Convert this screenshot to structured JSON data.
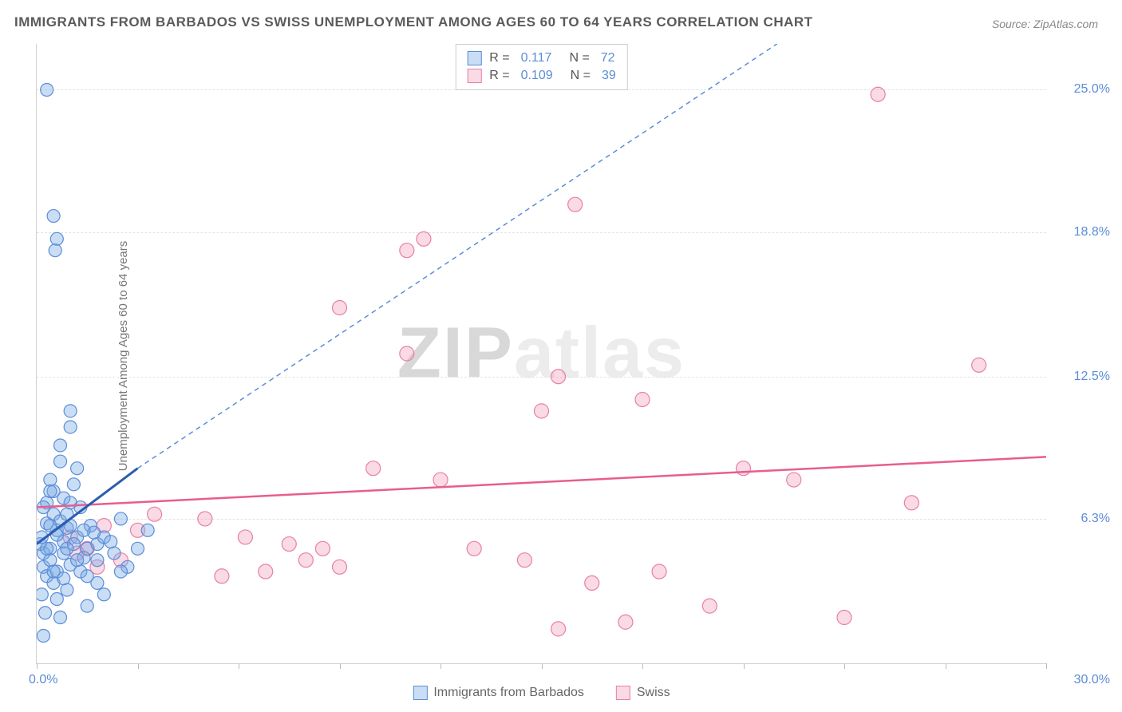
{
  "title": "IMMIGRANTS FROM BARBADOS VS SWISS UNEMPLOYMENT AMONG AGES 60 TO 64 YEARS CORRELATION CHART",
  "source": "Source: ZipAtlas.com",
  "ylabel": "Unemployment Among Ages 60 to 64 years",
  "watermark_z": "ZIP",
  "watermark_rest": "atlas",
  "chart": {
    "type": "scatter",
    "xlim": [
      0,
      30
    ],
    "ylim": [
      0,
      27
    ],
    "xlabel_min": "0.0%",
    "xlabel_max": "30.0%",
    "xtick_positions": [
      0,
      3,
      6,
      9,
      12,
      15,
      18,
      21,
      24,
      27,
      30
    ],
    "yticks": [
      {
        "value": 6.3,
        "label": "6.3%"
      },
      {
        "value": 12.5,
        "label": "12.5%"
      },
      {
        "value": 18.8,
        "label": "18.8%"
      },
      {
        "value": 25.0,
        "label": "25.0%"
      }
    ],
    "background_color": "#ffffff",
    "grid_color": "#e3e3e3",
    "series_a": {
      "name": "Immigrants from Barbados",
      "legend_label": "Immigrants from Barbados",
      "R": "0.117",
      "N": "72",
      "color_fill": "rgba(120,170,230,0.4)",
      "color_stroke": "#5b8dd6",
      "marker_radius": 8,
      "trend_solid": {
        "x1": 0,
        "y1": 5.2,
        "x2": 3,
        "y2": 8.5,
        "color": "#2b5cb0",
        "width": 3
      },
      "trend_dash": {
        "x1": 3,
        "y1": 8.5,
        "x2": 22,
        "y2": 27,
        "color": "#5b8dd6",
        "width": 1.5
      },
      "points": [
        [
          0.1,
          5.2
        ],
        [
          0.2,
          4.8
        ],
        [
          0.3,
          6.1
        ],
        [
          0.15,
          5.5
        ],
        [
          0.4,
          5.0
        ],
        [
          0.5,
          6.5
        ],
        [
          0.3,
          7.0
        ],
        [
          0.6,
          5.8
        ],
        [
          0.2,
          4.2
        ],
        [
          0.4,
          4.5
        ],
        [
          0.7,
          6.2
        ],
        [
          0.5,
          7.5
        ],
        [
          0.8,
          5.3
        ],
        [
          0.3,
          3.8
        ],
        [
          0.6,
          4.0
        ],
        [
          0.9,
          5.9
        ],
        [
          0.4,
          8.0
        ],
        [
          0.7,
          8.8
        ],
        [
          1.0,
          6.0
        ],
        [
          0.5,
          3.5
        ],
        [
          0.8,
          7.2
        ],
        [
          1.2,
          5.5
        ],
        [
          0.6,
          2.8
        ],
        [
          1.0,
          4.3
        ],
        [
          1.3,
          6.8
        ],
        [
          0.9,
          3.2
        ],
        [
          1.1,
          7.8
        ],
        [
          1.5,
          5.0
        ],
        [
          0.7,
          9.5
        ],
        [
          1.0,
          10.3
        ],
        [
          1.4,
          4.6
        ],
        [
          1.8,
          5.2
        ],
        [
          1.2,
          8.5
        ],
        [
          1.6,
          6.0
        ],
        [
          2.0,
          5.5
        ],
        [
          1.0,
          11.0
        ],
        [
          0.3,
          25.0
        ],
        [
          0.5,
          19.5
        ],
        [
          0.6,
          18.5
        ],
        [
          0.55,
          18.0
        ],
        [
          2.3,
          4.8
        ],
        [
          2.5,
          6.3
        ],
        [
          1.8,
          3.5
        ],
        [
          3.0,
          5.0
        ],
        [
          2.7,
          4.2
        ],
        [
          3.3,
          5.8
        ],
        [
          1.5,
          2.5
        ],
        [
          2.0,
          3.0
        ],
        [
          0.2,
          6.8
        ],
        [
          0.4,
          7.5
        ],
        [
          0.8,
          4.8
        ],
        [
          1.1,
          5.2
        ],
        [
          0.9,
          6.5
        ],
        [
          1.3,
          4.0
        ],
        [
          1.7,
          5.7
        ],
        [
          2.2,
          5.3
        ],
        [
          0.3,
          5.0
        ],
        [
          0.6,
          5.6
        ],
        [
          1.0,
          7.0
        ],
        [
          1.4,
          5.8
        ],
        [
          0.5,
          4.0
        ],
        [
          0.8,
          3.7
        ],
        [
          1.2,
          4.5
        ],
        [
          0.15,
          3.0
        ],
        [
          0.25,
          2.2
        ],
        [
          0.7,
          2.0
        ],
        [
          1.5,
          3.8
        ],
        [
          0.4,
          6.0
        ],
        [
          0.9,
          5.0
        ],
        [
          0.2,
          1.2
        ],
        [
          1.8,
          4.5
        ],
        [
          2.5,
          4.0
        ]
      ]
    },
    "series_b": {
      "name": "Swiss",
      "legend_label": "Swiss",
      "R": "0.109",
      "N": "39",
      "color_fill": "rgba(240,150,180,0.35)",
      "color_stroke": "#e87fa8",
      "marker_radius": 9,
      "trend_solid": {
        "x1": 0,
        "y1": 6.8,
        "x2": 30,
        "y2": 9.0,
        "color": "#e85d8f",
        "width": 2.5
      },
      "points": [
        [
          1.0,
          5.5
        ],
        [
          1.5,
          5.0
        ],
        [
          2.0,
          6.0
        ],
        [
          2.5,
          4.5
        ],
        [
          3.0,
          5.8
        ],
        [
          1.2,
          4.8
        ],
        [
          1.8,
          4.2
        ],
        [
          3.5,
          6.5
        ],
        [
          5.0,
          6.3
        ],
        [
          5.5,
          3.8
        ],
        [
          6.2,
          5.5
        ],
        [
          6.8,
          4.0
        ],
        [
          7.5,
          5.2
        ],
        [
          8.0,
          4.5
        ],
        [
          8.5,
          5.0
        ],
        [
          9.0,
          4.2
        ],
        [
          10.0,
          8.5
        ],
        [
          11.0,
          18.0
        ],
        [
          11.5,
          18.5
        ],
        [
          11.0,
          13.5
        ],
        [
          9.0,
          15.5
        ],
        [
          12.0,
          8.0
        ],
        [
          13.0,
          5.0
        ],
        [
          14.5,
          4.5
        ],
        [
          15.0,
          11.0
        ],
        [
          15.5,
          12.5
        ],
        [
          16.0,
          20.0
        ],
        [
          16.5,
          3.5
        ],
        [
          18.0,
          11.5
        ],
        [
          18.5,
          4.0
        ],
        [
          21.0,
          8.5
        ],
        [
          22.5,
          8.0
        ],
        [
          24.0,
          2.0
        ],
        [
          25.0,
          24.8
        ],
        [
          26.0,
          7.0
        ],
        [
          28.0,
          13.0
        ],
        [
          15.5,
          1.5
        ],
        [
          17.5,
          1.8
        ],
        [
          20.0,
          2.5
        ]
      ]
    }
  }
}
